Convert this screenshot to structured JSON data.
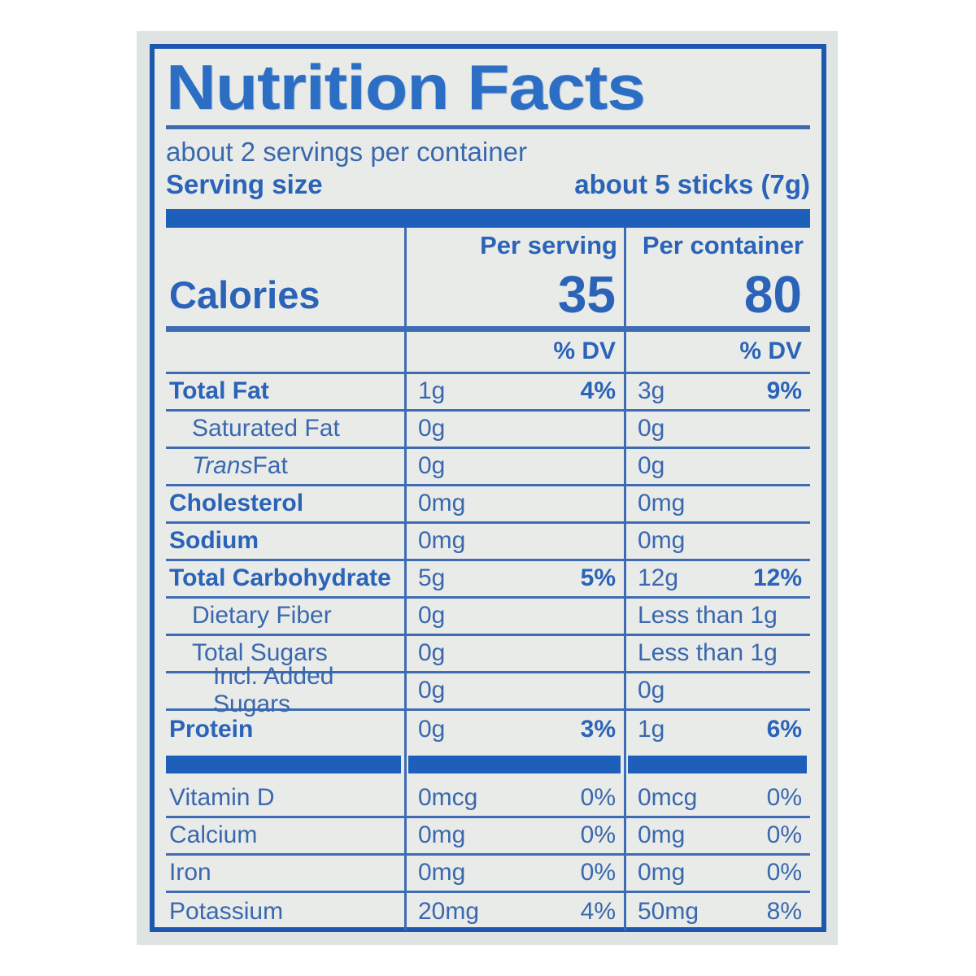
{
  "colors": {
    "accent_blue": "#1f5fbc",
    "border_blue": "#1c57b0",
    "line_blue": "#3e6cb4",
    "text_blue": "#3a68ae",
    "title_blue": "#2b6ec4",
    "label_background": "#e9ebe9",
    "package_background": "#dfe3e2"
  },
  "label": {
    "title": "Nutrition Facts",
    "servings_line": "about 2 servings per container",
    "serving_size": {
      "label": "Serving size",
      "value": "about 5 sticks (7g)"
    },
    "column_headers": {
      "per_serving": "Per serving",
      "per_container": "Per container"
    },
    "calories": {
      "label": "Calories",
      "per_serving": "35",
      "per_container": "80"
    },
    "dv_header": "% DV",
    "rows": [
      {
        "name": "Total Fat",
        "serving_amount": "1g",
        "serving_dv": "4%",
        "container_amount": "3g",
        "container_dv": "9%"
      },
      {
        "name": "Saturated Fat",
        "serving_amount": "0g",
        "serving_dv": "",
        "container_amount": "0g",
        "container_dv": ""
      },
      {
        "name_italic": "Trans",
        "name_rest": " Fat",
        "serving_amount": "0g",
        "serving_dv": "",
        "container_amount": "0g",
        "container_dv": ""
      },
      {
        "name": "Cholesterol",
        "serving_amount": "0mg",
        "serving_dv": "",
        "container_amount": "0mg",
        "container_dv": ""
      },
      {
        "name": "Sodium",
        "serving_amount": "0mg",
        "serving_dv": "",
        "container_amount": "0mg",
        "container_dv": ""
      },
      {
        "name": "Total Carbohydrate",
        "serving_amount": "5g",
        "serving_dv": "5%",
        "container_amount": "12g",
        "container_dv": "12%"
      },
      {
        "name": "Dietary Fiber",
        "serving_amount": "0g",
        "serving_dv": "",
        "container_amount": "Less than 1g",
        "container_dv": ""
      },
      {
        "name": "Total Sugars",
        "serving_amount": "0g",
        "serving_dv": "",
        "container_amount": "Less than 1g",
        "container_dv": ""
      },
      {
        "name": "Incl. Added Sugars",
        "serving_amount": "0g",
        "serving_dv": "",
        "container_amount": "0g",
        "container_dv": ""
      },
      {
        "name": "Protein",
        "serving_amount": "0g",
        "serving_dv": "3%",
        "container_amount": "1g",
        "container_dv": "6%"
      }
    ],
    "vitamins": [
      {
        "name": "Vitamin D",
        "serving_amount": "0mcg",
        "serving_dv": "0%",
        "container_amount": "0mcg",
        "container_dv": "0%"
      },
      {
        "name": "Calcium",
        "serving_amount": "0mg",
        "serving_dv": "0%",
        "container_amount": "0mg",
        "container_dv": "0%"
      },
      {
        "name": "Iron",
        "serving_amount": "0mg",
        "serving_dv": "0%",
        "container_amount": "0mg",
        "container_dv": "0%"
      },
      {
        "name": "Potassium",
        "serving_amount": "20mg",
        "serving_dv": "4%",
        "container_amount": "50mg",
        "container_dv": "8%"
      }
    ]
  }
}
